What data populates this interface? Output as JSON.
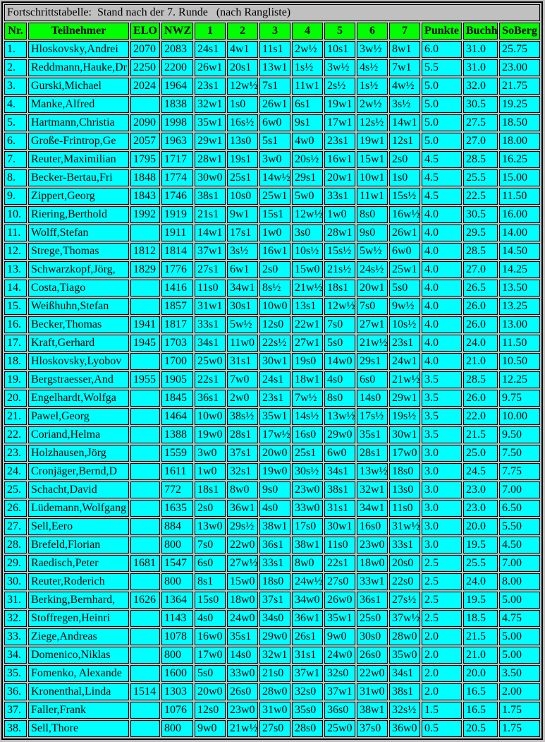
{
  "title": "Fortschrittstabelle:  Stand nach der 7. Runde   (nach Rangliste)",
  "colors": {
    "page_bg": "#c0c0c0",
    "header_bg": "#00ff00",
    "cell_bg": "#00ffff",
    "title_bg": "#c0c0c0",
    "border_color": "#000000",
    "text_color": "#000000"
  },
  "chart_data": {
    "type": "table",
    "title": "Fortschrittstabelle:  Stand nach der 7. Runde   (nach Rangliste)",
    "columns": [
      "Nr.",
      "Teilnehmer",
      "ELO",
      "NWZ",
      "1",
      "2",
      "3",
      "4",
      "5",
      "6",
      "7",
      "Punkte",
      "Buchh",
      "SoBerg"
    ],
    "rows": [
      [
        "1.",
        "Hloskovsky,Andrei",
        "2070",
        "2083",
        "24s1",
        "4w1",
        "11s1",
        "2w½",
        "10s1",
        "3w½",
        "8w1",
        "6.0",
        "31.0",
        "25.75"
      ],
      [
        "2.",
        "Reddmann,Hauke,Dr",
        "2250",
        "2200",
        "26w1",
        "20s1",
        "13w1",
        "1s½",
        "3w½",
        "4s½",
        "7w1",
        "5.5",
        "31.0",
        "23.00"
      ],
      [
        "3.",
        "Gurski,Michael",
        "2024",
        "1964",
        "23s1",
        "12w½",
        "7s1",
        "11w1",
        "2s½",
        "1s½",
        "4w½",
        "5.0",
        "32.0",
        "21.75"
      ],
      [
        "4.",
        "Manke,Alfred",
        "",
        "1838",
        "32w1",
        "1s0",
        "26w1",
        "6s1",
        "19w1",
        "2w½",
        "3s½",
        "5.0",
        "30.5",
        "19.25"
      ],
      [
        "5.",
        "Hartmann,Christia",
        "2090",
        "1998",
        "35w1",
        "16s½",
        "6w0",
        "9s1",
        "17w1",
        "12s½",
        "14w1",
        "5.0",
        "27.5",
        "18.50"
      ],
      [
        "6.",
        "Große-Frintrop,Ge",
        "2057",
        "1963",
        "29w1",
        "13s0",
        "5s1",
        "4w0",
        "23s1",
        "19w1",
        "12s1",
        "5.0",
        "27.0",
        "18.00"
      ],
      [
        "7.",
        "Reuter,Maximilian",
        "1795",
        "1717",
        "28w1",
        "19s1",
        "3w0",
        "20s½",
        "16w1",
        "15w1",
        "2s0",
        "4.5",
        "28.5",
        "16.25"
      ],
      [
        "8.",
        "Becker-Bertau,Fri",
        "1848",
        "1774",
        "30w0",
        "25s1",
        "14w½",
        "29s1",
        "20w1",
        "10w1",
        "1s0",
        "4.5",
        "25.5",
        "15.00"
      ],
      [
        "9.",
        "Zippert,Georg",
        "1843",
        "1746",
        "38s1",
        "10s0",
        "25w1",
        "5w0",
        "33s1",
        "11w1",
        "15s½",
        "4.5",
        "22.5",
        "11.50"
      ],
      [
        "10.",
        "Riering,Berthold",
        "1992",
        "1919",
        "21s1",
        "9w1",
        "15s1",
        "12w½",
        "1w0",
        "8s0",
        "16w½",
        "4.0",
        "30.5",
        "16.00"
      ],
      [
        "11.",
        "Wolff,Stefan",
        "",
        "1911",
        "14w1",
        "17s1",
        "1w0",
        "3s0",
        "28w1",
        "9s0",
        "26w1",
        "4.0",
        "29.5",
        "14.00"
      ],
      [
        "12.",
        "Strege,Thomas",
        "1812",
        "1814",
        "37w1",
        "3s½",
        "16w1",
        "10s½",
        "15s½",
        "5w½",
        "6w0",
        "4.0",
        "28.5",
        "14.50"
      ],
      [
        "13.",
        "Schwarzkopf,Jörg,",
        "1829",
        "1776",
        "27s1",
        "6w1",
        "2s0",
        "15w0",
        "21s½",
        "24s½",
        "25w1",
        "4.0",
        "27.0",
        "14.25"
      ],
      [
        "14.",
        "Costa,Tiago",
        "",
        "1416",
        "11s0",
        "34w1",
        "8s½",
        "21w½",
        "18s1",
        "20w1",
        "5s0",
        "4.0",
        "26.5",
        "13.50"
      ],
      [
        "15.",
        "Weißhuhn,Stefan",
        "",
        "1857",
        "31w1",
        "30s1",
        "10w0",
        "13s1",
        "12w½",
        "7s0",
        "9w½",
        "4.0",
        "26.0",
        "13.25"
      ],
      [
        "16.",
        "Becker,Thomas",
        "1941",
        "1817",
        "33s1",
        "5w½",
        "12s0",
        "22w1",
        "7s0",
        "27w1",
        "10s½",
        "4.0",
        "26.0",
        "13.00"
      ],
      [
        "17.",
        "Kraft,Gerhard",
        "1945",
        "1703",
        "34s1",
        "11w0",
        "22s½",
        "27w1",
        "5s0",
        "21w½",
        "23s1",
        "4.0",
        "24.0",
        "11.50"
      ],
      [
        "18.",
        "Hloskovsky,Lyobov",
        "",
        "1700",
        "25w0",
        "31s1",
        "30w1",
        "19s0",
        "14w0",
        "29s1",
        "24w1",
        "4.0",
        "21.0",
        "10.50"
      ],
      [
        "19.",
        "Bergstraesser,And",
        "1955",
        "1905",
        "22s1",
        "7w0",
        "24s1",
        "18w1",
        "4s0",
        "6s0",
        "21w½",
        "3.5",
        "28.5",
        "12.25"
      ],
      [
        "20.",
        "Engelhardt,Wolfga",
        "",
        "1845",
        "36s1",
        "2w0",
        "23s1",
        "7w½",
        "8s0",
        "14s0",
        "29w1",
        "3.5",
        "26.0",
        "9.75"
      ],
      [
        "21.",
        "Pawel,Georg",
        "",
        "1464",
        "10w0",
        "38s½",
        "35w1",
        "14s½",
        "13w½",
        "17s½",
        "19s½",
        "3.5",
        "22.0",
        "10.00"
      ],
      [
        "22.",
        "Coriand,Helma",
        "",
        "1388",
        "19w0",
        "28s1",
        "17w½",
        "16s0",
        "29w0",
        "35s1",
        "30w1",
        "3.5",
        "21.5",
        "9.50"
      ],
      [
        "23.",
        "Holzhausen,Jörg",
        "",
        "1559",
        "3w0",
        "37s1",
        "20w0",
        "25s1",
        "6w0",
        "28s1",
        "17w0",
        "3.0",
        "25.0",
        "7.50"
      ],
      [
        "24.",
        "Cronjäger,Bernd,D",
        "",
        "1611",
        "1w0",
        "32s1",
        "19w0",
        "30s½",
        "34s1",
        "13w½",
        "18s0",
        "3.0",
        "24.5",
        "7.75"
      ],
      [
        "25.",
        "Schacht,David",
        "",
        "772",
        "18s1",
        "8w0",
        "9s0",
        "23w0",
        "38s1",
        "32w1",
        "13s0",
        "3.0",
        "23.0",
        "7.00"
      ],
      [
        "26.",
        "Lüdemann,Wolfgang",
        "",
        "1635",
        "2s0",
        "36w1",
        "4s0",
        "33w0",
        "31s1",
        "34w1",
        "11s0",
        "3.0",
        "23.0",
        "6.50"
      ],
      [
        "27.",
        "Sell,Eero",
        "",
        "884",
        "13w0",
        "29s½",
        "38w1",
        "17s0",
        "30w1",
        "16s0",
        "31w½",
        "3.0",
        "20.0",
        "5.50"
      ],
      [
        "28.",
        "Brefeld,Florian",
        "",
        "800",
        "7s0",
        "22w0",
        "36s1",
        "38w1",
        "11s0",
        "23w0",
        "33s1",
        "3.0",
        "19.5",
        "4.50"
      ],
      [
        "29.",
        "Raedisch,Peter",
        "1681",
        "1547",
        "6s0",
        "27w½",
        "33s1",
        "8w0",
        "22s1",
        "18w0",
        "20s0",
        "2.5",
        "25.5",
        "7.00"
      ],
      [
        "30.",
        "Reuter,Roderich",
        "",
        "800",
        "8s1",
        "15w0",
        "18s0",
        "24w½",
        "27s0",
        "33w1",
        "22s0",
        "2.5",
        "24.0",
        "8.00"
      ],
      [
        "31.",
        "Berking,Bernhard,",
        "1626",
        "1364",
        "15s0",
        "18w0",
        "37s1",
        "34w0",
        "26w0",
        "36s1",
        "27s½",
        "2.5",
        "19.5",
        "5.00"
      ],
      [
        "32.",
        "Stoffregen,Heinri",
        "",
        "1143",
        "4s0",
        "24w0",
        "34s0",
        "36w1",
        "35w1",
        "25s0",
        "37w½",
        "2.5",
        "18.5",
        "4.75"
      ],
      [
        "33.",
        "Ziege,Andreas",
        "",
        "1078",
        "16w0",
        "35s1",
        "29w0",
        "26s1",
        "9w0",
        "30s0",
        "28w0",
        "2.0",
        "21.5",
        "5.00"
      ],
      [
        "34.",
        "Domenico,Niklas",
        "",
        "800",
        "17w0",
        "14s0",
        "32w1",
        "31s1",
        "24w0",
        "26s0",
        "35w0",
        "2.0",
        "21.0",
        "5.00"
      ],
      [
        "35.",
        "Fomenko, Alexande",
        "",
        "1600",
        "5s0",
        "33w0",
        "21s0",
        "37w1",
        "32s0",
        "22w0",
        "34s1",
        "2.0",
        "20.0",
        "3.50"
      ],
      [
        "36.",
        "Kronenthal,Linda",
        "1514",
        "1303",
        "20w0",
        "26s0",
        "28w0",
        "32s0",
        "37w1",
        "31w0",
        "38s1",
        "2.0",
        "16.5",
        "2.00"
      ],
      [
        "37.",
        "Faller,Frank",
        "",
        "1076",
        "12s0",
        "23w0",
        "31w0",
        "35s0",
        "36s0",
        "38w1",
        "32s½",
        "1.5",
        "16.5",
        "1.75"
      ],
      [
        "38.",
        "Sell,Thore",
        "",
        "800",
        "9w0",
        "21w½",
        "27s0",
        "28s0",
        "25w0",
        "37s0",
        "36w0",
        "0.5",
        "20.5",
        "1.75"
      ]
    ]
  }
}
